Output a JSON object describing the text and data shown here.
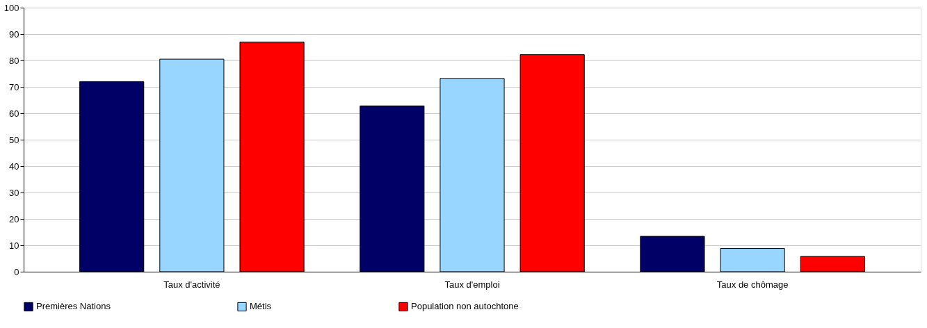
{
  "chart_data": {
    "type": "bar",
    "categories": [
      "Taux d'activité",
      "Taux d'emploi",
      "Taux de chômage"
    ],
    "series": [
      {
        "name": "Premières Nations",
        "color": "#000066",
        "values": [
          72.0,
          62.8,
          13.4
        ]
      },
      {
        "name": "Métis",
        "color": "#99d6ff",
        "values": [
          80.5,
          73.2,
          8.8
        ]
      },
      {
        "name": "Population non autochtone",
        "color": "#ff0000",
        "values": [
          87.0,
          82.2,
          5.8
        ]
      }
    ],
    "ylim": [
      0,
      100
    ],
    "yticks": [
      0,
      10,
      20,
      30,
      40,
      50,
      60,
      70,
      80,
      90,
      100
    ],
    "grid": "y",
    "legend": "bottom"
  }
}
